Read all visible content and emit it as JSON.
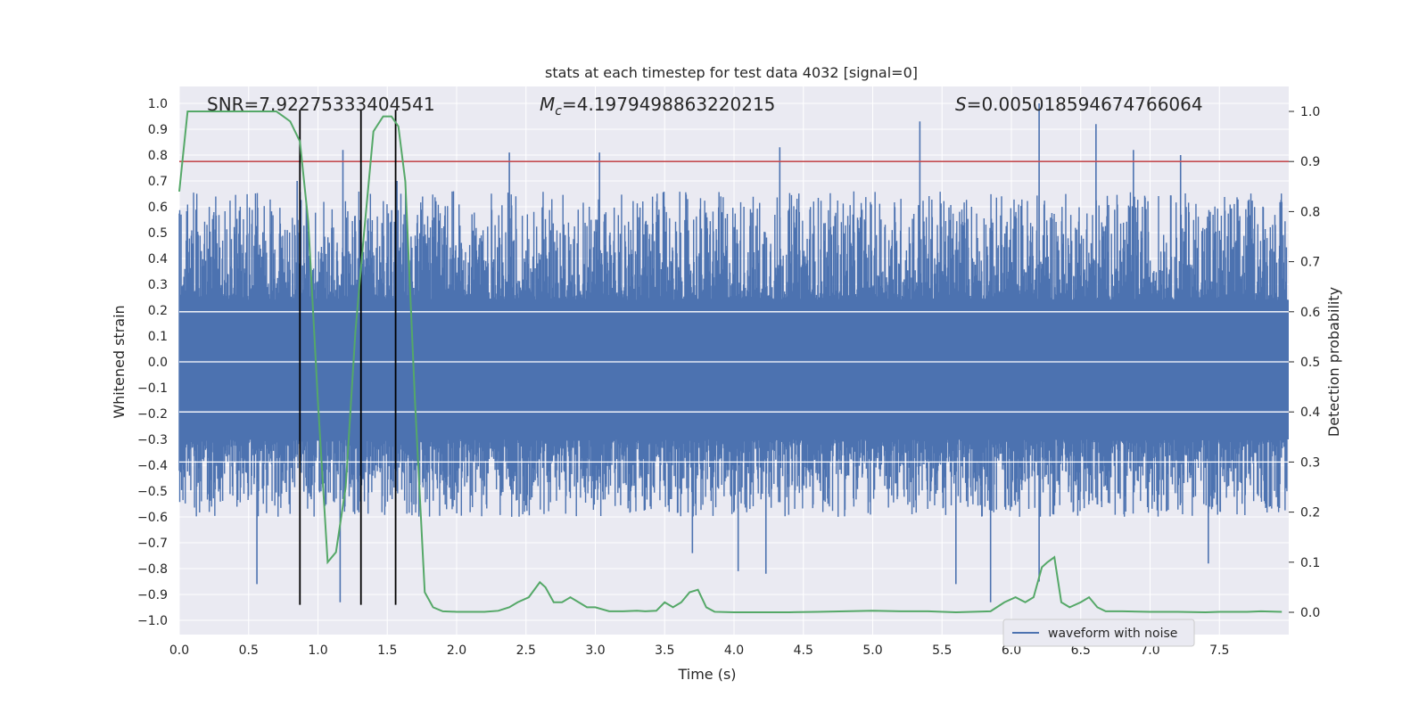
{
  "chart_data": {
    "type": "line",
    "title": "stats at each timestep for test data 4032 [signal=0]",
    "xlabel": "Time (s)",
    "ylabel": "Whitened strain",
    "ylabel_right": "Detection probability",
    "xlim": [
      0.0,
      8.0
    ],
    "ylim": [
      -1.05,
      1.1
    ],
    "ylim_right": [
      -0.05,
      1.05
    ],
    "x_ticks": [
      "0.0",
      "0.5",
      "1.0",
      "1.5",
      "2.0",
      "2.5",
      "3.0",
      "3.5",
      "4.0",
      "4.5",
      "5.0",
      "5.5",
      "6.0",
      "6.5",
      "7.0",
      "7.5"
    ],
    "x_tick_values": [
      0.0,
      0.5,
      1.0,
      1.5,
      2.0,
      2.5,
      3.0,
      3.5,
      4.0,
      4.5,
      5.0,
      5.5,
      6.0,
      6.5,
      7.0,
      7.5
    ],
    "y_ticks": [
      "1.0",
      "0.9",
      "0.8",
      "0.7",
      "0.6",
      "0.5",
      "0.4",
      "0.3",
      "0.2",
      "0.1",
      "0.0",
      "−0.1",
      "−0.2",
      "−0.3",
      "−0.4",
      "−0.5",
      "−0.6",
      "−0.7",
      "−0.8",
      "−0.9",
      "−1.0"
    ],
    "y_tick_values": [
      1.0,
      0.9,
      0.8,
      0.7,
      0.6,
      0.5,
      0.4,
      0.3,
      0.2,
      0.1,
      0.0,
      -0.1,
      -0.2,
      -0.3,
      -0.4,
      -0.5,
      -0.6,
      -0.7,
      -0.8,
      -0.9,
      -1.0
    ],
    "y2_ticks": [
      "1.0",
      "0.9",
      "0.8",
      "0.7",
      "0.6",
      "0.5",
      "0.4",
      "0.3",
      "0.2",
      "0.1",
      "0.0"
    ],
    "y2_tick_values": [
      1.0,
      0.9,
      0.8,
      0.7,
      0.6,
      0.5,
      0.4,
      0.3,
      0.2,
      0.1,
      0.0
    ],
    "annotations": {
      "snr": "SNR=7.92275333404541",
      "mc_symbol": "M",
      "mc_sub": "c",
      "mc_value": "=4.1979498863220215",
      "s_symbol": "S",
      "s_value": "=0.005018594674766064"
    },
    "threshold": {
      "value": 0.9,
      "axis": "right",
      "color": "#c44e52"
    },
    "vertical_lines": [
      0.87,
      1.31,
      1.56
    ],
    "waveform": {
      "name": "waveform with noise",
      "color": "#4c72b0",
      "spikes": [
        {
          "x": 0.56,
          "y": -0.86
        },
        {
          "x": 0.85,
          "y": 0.7
        },
        {
          "x": 1.16,
          "y": -0.93
        },
        {
          "x": 1.18,
          "y": 0.82
        },
        {
          "x": 1.57,
          "y": 0.7
        },
        {
          "x": 2.38,
          "y": 0.81
        },
        {
          "x": 3.03,
          "y": 0.81
        },
        {
          "x": 3.7,
          "y": -0.74
        },
        {
          "x": 4.03,
          "y": -0.81
        },
        {
          "x": 4.23,
          "y": -0.82
        },
        {
          "x": 4.33,
          "y": 0.83
        },
        {
          "x": 5.34,
          "y": 0.93
        },
        {
          "x": 5.6,
          "y": -0.86
        },
        {
          "x": 5.85,
          "y": -0.93
        },
        {
          "x": 6.2,
          "y": 1.0
        },
        {
          "x": 6.2,
          "y": -0.85
        },
        {
          "x": 6.61,
          "y": 0.92
        },
        {
          "x": 6.88,
          "y": 0.82
        },
        {
          "x": 7.22,
          "y": 0.8
        },
        {
          "x": 7.42,
          "y": -0.78
        }
      ]
    },
    "probability": {
      "name": "Detection probability",
      "color": "#55a868",
      "x": [
        0.0,
        0.06,
        0.12,
        0.2,
        0.3,
        0.4,
        0.5,
        0.6,
        0.7,
        0.75,
        0.8,
        0.87,
        0.93,
        1.0,
        1.07,
        1.13,
        1.2,
        1.27,
        1.33,
        1.4,
        1.47,
        1.53,
        1.58,
        1.63,
        1.7,
        1.77,
        1.83,
        1.9,
        2.0,
        2.1,
        2.2,
        2.3,
        2.38,
        2.44,
        2.52,
        2.6,
        2.64,
        2.7,
        2.76,
        2.82,
        2.88,
        2.94,
        3.0,
        3.1,
        3.2,
        3.3,
        3.36,
        3.44,
        3.5,
        3.56,
        3.62,
        3.68,
        3.74,
        3.8,
        3.86,
        4.0,
        4.2,
        4.4,
        4.6,
        4.8,
        5.0,
        5.2,
        5.4,
        5.6,
        5.85,
        5.95,
        6.03,
        6.1,
        6.16,
        6.22,
        6.26,
        6.31,
        6.36,
        6.42,
        6.5,
        6.56,
        6.62,
        6.68,
        6.8,
        7.0,
        7.2,
        7.4,
        7.5,
        7.6,
        7.7,
        7.8,
        7.95
      ],
      "y": [
        0.84,
        1.0,
        1.0,
        1.0,
        1.0,
        1.0,
        1.0,
        1.0,
        1.0,
        0.99,
        0.98,
        0.94,
        0.78,
        0.42,
        0.1,
        0.12,
        0.25,
        0.56,
        0.75,
        0.96,
        0.99,
        0.99,
        0.97,
        0.86,
        0.42,
        0.04,
        0.01,
        0.002,
        0.001,
        0.001,
        0.001,
        0.003,
        0.01,
        0.02,
        0.03,
        0.06,
        0.05,
        0.02,
        0.02,
        0.03,
        0.02,
        0.01,
        0.01,
        0.002,
        0.002,
        0.003,
        0.002,
        0.003,
        0.02,
        0.01,
        0.02,
        0.04,
        0.045,
        0.01,
        0.001,
        0.0,
        0.0,
        0.0,
        0.001,
        0.002,
        0.003,
        0.002,
        0.002,
        0.0,
        0.002,
        0.02,
        0.03,
        0.02,
        0.03,
        0.09,
        0.1,
        0.11,
        0.02,
        0.01,
        0.02,
        0.03,
        0.01,
        0.002,
        0.002,
        0.001,
        0.001,
        0.0,
        0.001,
        0.001,
        0.001,
        0.002,
        0.001
      ]
    },
    "legend": {
      "position": "lower-right",
      "entries": [
        "waveform with noise"
      ]
    },
    "grid": true
  }
}
